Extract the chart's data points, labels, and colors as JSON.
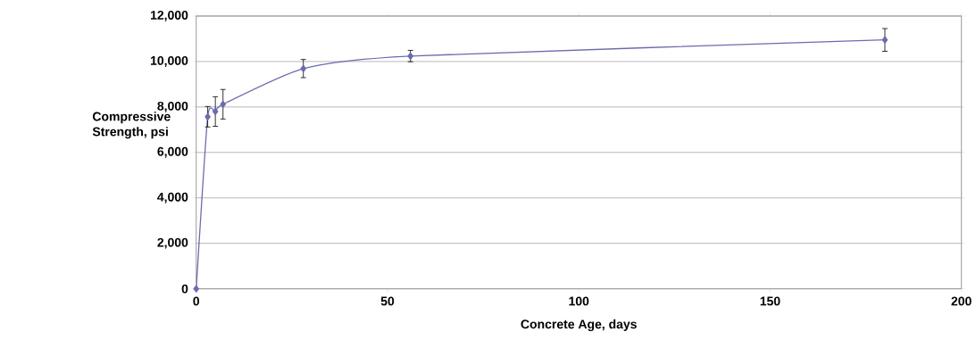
{
  "chart_data": {
    "type": "line",
    "xlabel": "Concrete Age, days",
    "ylabel": "Compressive Strength, psi",
    "x": [
      0,
      3,
      5,
      7,
      28,
      56,
      180
    ],
    "values": [
      0,
      7570,
      7800,
      8120,
      9690,
      10240,
      10950
    ],
    "errors": [
      null,
      450,
      650,
      650,
      400,
      250,
      500
    ],
    "color": "#6b6bb0",
    "marker": "diamond",
    "line_style": "solid",
    "grid": "y",
    "xlim": [
      0,
      200
    ],
    "ylim": [
      0,
      12000
    ],
    "xticks": [
      0,
      50,
      100,
      150,
      200
    ],
    "yticks": [
      0,
      {
        "value": 2000,
        "label": "2,000"
      },
      {
        "value": 4000,
        "label": "4,000"
      },
      {
        "value": 6000,
        "label": "6,000"
      },
      {
        "value": 8000,
        "label": "8,000"
      },
      {
        "value": 10000,
        "label": "10,000"
      },
      {
        "value": 12000,
        "label": "12,000"
      }
    ]
  }
}
